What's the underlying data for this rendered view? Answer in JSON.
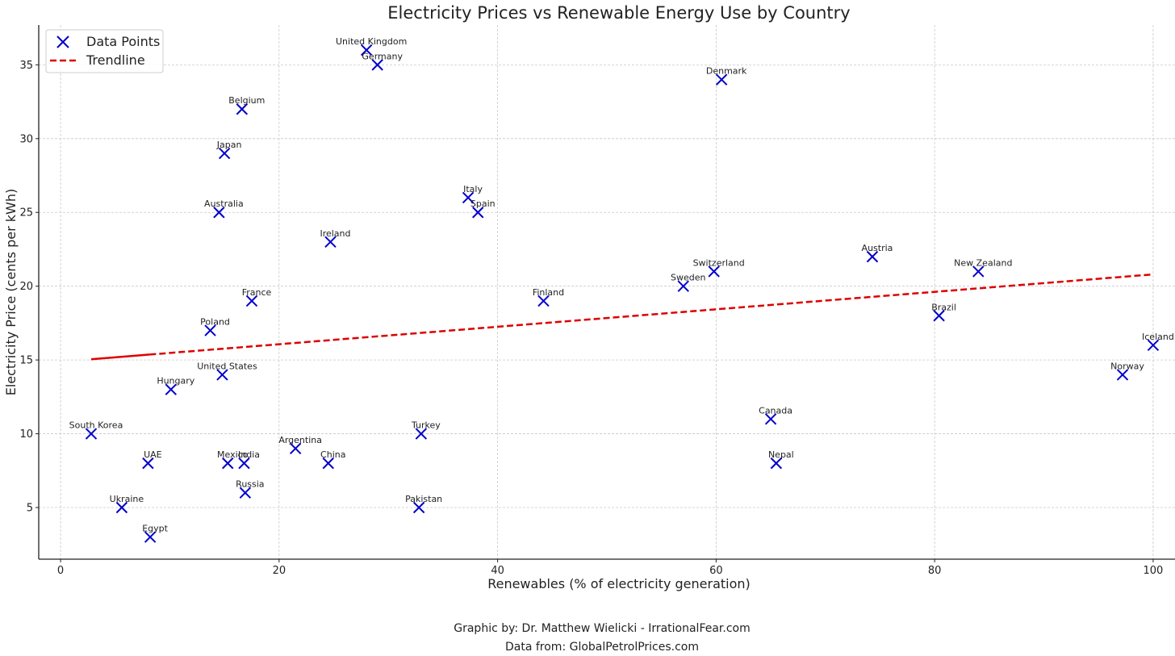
{
  "chart_data": {
    "type": "scatter",
    "title": "Electricity Prices vs Renewable Energy Use by Country",
    "xlabel": "Renewables (% of electricity generation)",
    "ylabel": "Electricity Price (cents per kWh)",
    "xlim": [
      -2,
      102
    ],
    "ylim": [
      1.5,
      37.7
    ],
    "xticks": [
      0,
      20,
      40,
      60,
      80,
      100
    ],
    "yticks": [
      5,
      10,
      15,
      20,
      25,
      30,
      35
    ],
    "grid": true,
    "legend_position": "top-left",
    "legend": [
      {
        "label": "Data Points",
        "marker": "x",
        "color": "#0000cc"
      },
      {
        "label": "Trendline",
        "style": "dashed",
        "color": "#dd0000"
      }
    ],
    "series": [
      {
        "name": "Data Points",
        "color": "#0000cc",
        "marker": "x",
        "points": [
          {
            "label": "United Kingdom",
            "x": 28,
            "y": 36
          },
          {
            "label": "Germany",
            "x": 29,
            "y": 35
          },
          {
            "label": "Denmark",
            "x": 60.5,
            "y": 34
          },
          {
            "label": "Belgium",
            "x": 16.6,
            "y": 32
          },
          {
            "label": "Japan",
            "x": 15,
            "y": 29
          },
          {
            "label": "Italy",
            "x": 37.3,
            "y": 26
          },
          {
            "label": "Spain",
            "x": 38.2,
            "y": 25
          },
          {
            "label": "Australia",
            "x": 14.5,
            "y": 25
          },
          {
            "label": "Ireland",
            "x": 24.7,
            "y": 23
          },
          {
            "label": "Austria",
            "x": 74.3,
            "y": 22
          },
          {
            "label": "Switzerland",
            "x": 59.8,
            "y": 21
          },
          {
            "label": "New Zealand",
            "x": 84,
            "y": 21
          },
          {
            "label": "Sweden",
            "x": 57,
            "y": 20
          },
          {
            "label": "France",
            "x": 17.5,
            "y": 19
          },
          {
            "label": "Finland",
            "x": 44.2,
            "y": 19
          },
          {
            "label": "Brazil",
            "x": 80.4,
            "y": 18
          },
          {
            "label": "Poland",
            "x": 13.7,
            "y": 17
          },
          {
            "label": "Iceland",
            "x": 100,
            "y": 16
          },
          {
            "label": "United States",
            "x": 14.8,
            "y": 14
          },
          {
            "label": "Norway",
            "x": 97.2,
            "y": 14
          },
          {
            "label": "Hungary",
            "x": 10.1,
            "y": 13
          },
          {
            "label": "Canada",
            "x": 65,
            "y": 11
          },
          {
            "label": "South Korea",
            "x": 2.8,
            "y": 10
          },
          {
            "label": "Turkey",
            "x": 33,
            "y": 10
          },
          {
            "label": "Argentina",
            "x": 21.5,
            "y": 9
          },
          {
            "label": "UAE",
            "x": 8,
            "y": 8
          },
          {
            "label": "Mexico",
            "x": 15.3,
            "y": 8
          },
          {
            "label": "India",
            "x": 16.8,
            "y": 8
          },
          {
            "label": "China",
            "x": 24.5,
            "y": 8
          },
          {
            "label": "Nepal",
            "x": 65.5,
            "y": 8
          },
          {
            "label": "Russia",
            "x": 16.9,
            "y": 6
          },
          {
            "label": "Ukraine",
            "x": 5.6,
            "y": 5
          },
          {
            "label": "Pakistan",
            "x": 32.8,
            "y": 5
          },
          {
            "label": "Egypt",
            "x": 8.2,
            "y": 3
          }
        ]
      },
      {
        "name": "Trendline",
        "color": "#dd0000",
        "style": "dashed",
        "x": [
          2.8,
          100
        ],
        "y": [
          15.05,
          20.8
        ]
      }
    ]
  },
  "credits": {
    "line1": "Graphic by: Dr. Matthew Wielicki - IrrationalFear.com",
    "line2": "Data from: GlobalPetrolPrices.com"
  }
}
